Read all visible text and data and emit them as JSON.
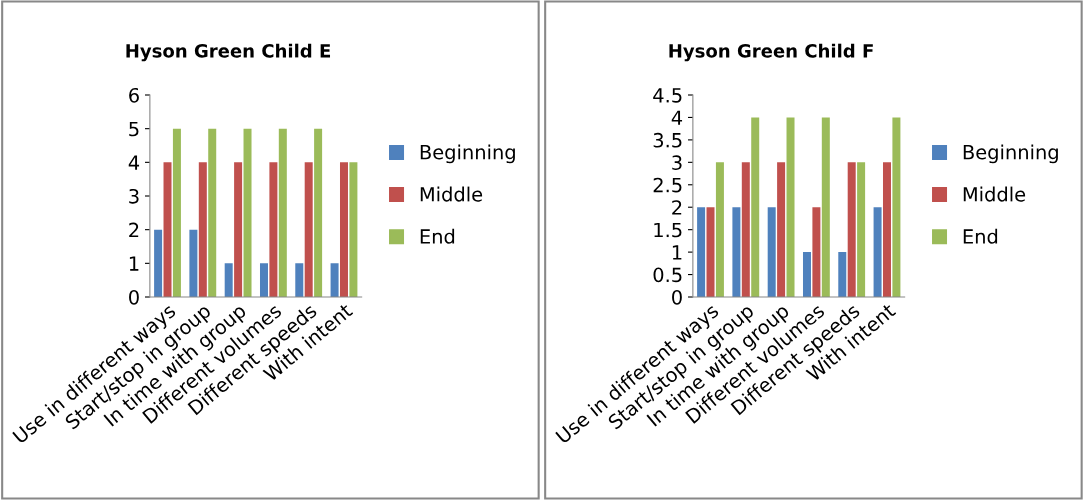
{
  "chart_data": [
    {
      "type": "bar",
      "title": "Hyson Green Child E",
      "categories": [
        "Use in different ways",
        "Start/stop in group",
        "In time with group",
        "Different volumes",
        "Different speeds",
        "With intent"
      ],
      "series": [
        {
          "name": "Beginning",
          "color": "#4f81bd",
          "values": [
            2,
            2,
            1,
            1,
            1,
            1
          ]
        },
        {
          "name": "Middle",
          "color": "#c0504d",
          "values": [
            4,
            4,
            4,
            4,
            4,
            4
          ]
        },
        {
          "name": "End",
          "color": "#9bbb59",
          "values": [
            5,
            5,
            5,
            5,
            5,
            4
          ]
        }
      ],
      "ylim": [
        0,
        6
      ],
      "yticks": [
        0,
        1,
        2,
        3,
        4,
        5,
        6
      ],
      "grid": false,
      "legend": "right"
    },
    {
      "type": "bar",
      "title": "Hyson Green Child F",
      "categories": [
        "Use in different ways",
        "Start/stop in group",
        "In time with group",
        "Different volumes",
        "Different speeds",
        "With intent"
      ],
      "series": [
        {
          "name": "Beginning",
          "color": "#4f81bd",
          "values": [
            2,
            2,
            2,
            1,
            1,
            2
          ]
        },
        {
          "name": "Middle",
          "color": "#c0504d",
          "values": [
            2,
            3,
            3,
            2,
            3,
            3
          ]
        },
        {
          "name": "End",
          "color": "#9bbb59",
          "values": [
            3,
            4,
            4,
            4,
            3,
            4
          ]
        }
      ],
      "ylim": [
        0,
        4.5
      ],
      "yticks": [
        0,
        0.5,
        1,
        1.5,
        2,
        2.5,
        3,
        3.5,
        4,
        4.5
      ],
      "grid": false,
      "legend": "right"
    }
  ]
}
